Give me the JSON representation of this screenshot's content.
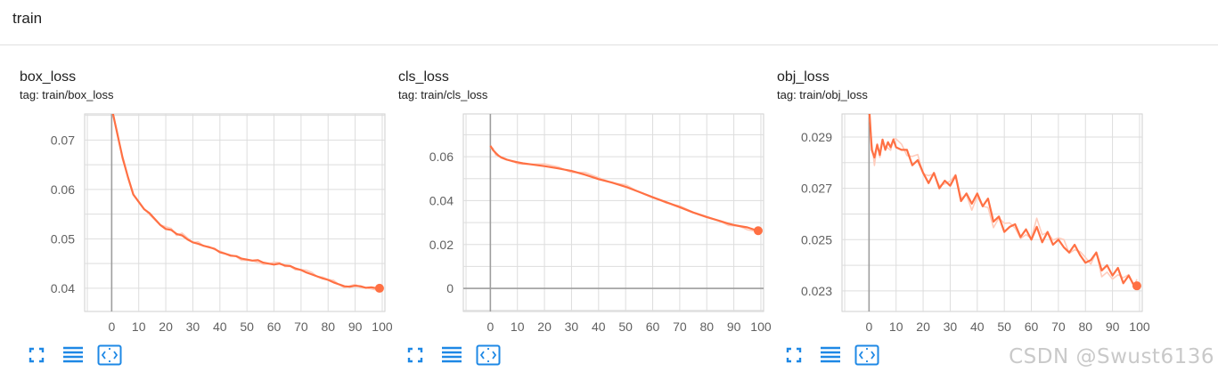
{
  "section": {
    "title": "train"
  },
  "cards": [
    {
      "title": "box_loss",
      "tag": "tag: train/box_loss",
      "toolbar": [
        "fullscreen-icon",
        "menu-lines-icon",
        "fit-domain-icon"
      ]
    },
    {
      "title": "cls_loss",
      "tag": "tag: train/cls_loss",
      "toolbar": [
        "fullscreen-icon",
        "menu-lines-icon",
        "fit-domain-icon"
      ]
    },
    {
      "title": "obj_loss",
      "tag": "tag: train/obj_loss",
      "toolbar": [
        "fullscreen-icon",
        "menu-lines-icon",
        "fit-domain-icon"
      ]
    }
  ],
  "watermark": "CSDN @Swust6136",
  "colors": {
    "line": "#ff7043",
    "raw": "#ffccbc",
    "grid": "#dddddd",
    "axis": "#9e9e9e",
    "icon": "#1e88e5"
  },
  "chart_data": [
    {
      "type": "line",
      "title": "box_loss",
      "xlim": [
        -10,
        101
      ],
      "ylim": [
        0.0353,
        0.0753
      ],
      "xticks": [
        0,
        10,
        20,
        30,
        40,
        50,
        60,
        70,
        80,
        90,
        100
      ],
      "yticks": [
        0.04,
        0.05,
        0.06,
        0.07
      ],
      "ytick_labels": [
        "0.04",
        "0.05",
        "0.06",
        "0.07"
      ],
      "grid": true,
      "series": [
        {
          "name": "smoothed",
          "x": [
            0,
            2,
            4,
            6,
            8,
            10,
            12,
            14,
            16,
            18,
            20,
            22,
            24,
            26,
            28,
            30,
            32,
            34,
            36,
            38,
            40,
            42,
            44,
            46,
            48,
            50,
            52,
            54,
            56,
            58,
            60,
            62,
            64,
            66,
            68,
            70,
            72,
            74,
            76,
            78,
            80,
            82,
            84,
            86,
            88,
            90,
            92,
            94,
            96,
            98,
            99
          ],
          "y": [
            0.0765,
            0.0715,
            0.0665,
            0.0625,
            0.059,
            0.0575,
            0.056,
            0.0552,
            0.054,
            0.0528,
            0.052,
            0.0518,
            0.051,
            0.0507,
            0.0499,
            0.0493,
            0.049,
            0.0486,
            0.0483,
            0.048,
            0.0473,
            0.047,
            0.0466,
            0.0465,
            0.046,
            0.0458,
            0.0456,
            0.0457,
            0.0452,
            0.045,
            0.0448,
            0.045,
            0.0446,
            0.0445,
            0.044,
            0.0437,
            0.0432,
            0.0428,
            0.0424,
            0.042,
            0.0417,
            0.0412,
            0.0408,
            0.0404,
            0.0403,
            0.0405,
            0.0404,
            0.0401,
            0.0402,
            0.04,
            0.04
          ]
        }
      ]
    },
    {
      "type": "line",
      "title": "cls_loss",
      "xlim": [
        -10,
        101
      ],
      "ylim": [
        -0.0105,
        0.0795
      ],
      "xticks": [
        0,
        10,
        20,
        30,
        40,
        50,
        60,
        70,
        80,
        90,
        100
      ],
      "yticks": [
        0,
        0.02,
        0.04,
        0.06
      ],
      "ytick_labels": [
        "0",
        "0.02",
        "0.04",
        "0.06"
      ],
      "grid": true,
      "series": [
        {
          "name": "smoothed",
          "x": [
            0,
            1,
            2,
            3,
            4,
            6,
            8,
            10,
            12,
            15,
            20,
            25,
            30,
            35,
            40,
            45,
            50,
            55,
            60,
            65,
            70,
            75,
            80,
            85,
            88,
            90,
            92,
            95,
            97,
            99
          ],
          "y": [
            0.065,
            0.063,
            0.0617,
            0.0605,
            0.0597,
            0.0587,
            0.058,
            0.0575,
            0.057,
            0.0565,
            0.0557,
            0.0547,
            0.0535,
            0.0518,
            0.0498,
            0.0482,
            0.0463,
            0.044,
            0.0415,
            0.0393,
            0.037,
            0.0346,
            0.0325,
            0.0307,
            0.0295,
            0.0289,
            0.0284,
            0.0278,
            0.027,
            0.0263
          ]
        }
      ]
    },
    {
      "type": "line",
      "title": "obj_loss",
      "xlim": [
        -10,
        101
      ],
      "ylim": [
        0.0222,
        0.0299
      ],
      "xticks": [
        0,
        10,
        20,
        30,
        40,
        50,
        60,
        70,
        80,
        90,
        100
      ],
      "yticks": [
        0.023,
        0.025,
        0.027,
        0.029
      ],
      "ytick_labels": [
        "0.023",
        "0.025",
        "0.027",
        "0.029"
      ],
      "grid": true,
      "series": [
        {
          "name": "smoothed",
          "x": [
            0,
            1,
            2,
            3,
            4,
            5,
            6,
            7,
            8,
            9,
            10,
            12,
            14,
            16,
            18,
            20,
            22,
            24,
            26,
            28,
            30,
            32,
            34,
            36,
            38,
            40,
            42,
            44,
            46,
            48,
            50,
            52,
            54,
            56,
            58,
            60,
            62,
            64,
            66,
            68,
            70,
            72,
            74,
            76,
            78,
            80,
            82,
            84,
            86,
            88,
            90,
            92,
            94,
            96,
            98,
            99
          ],
          "y": [
            0.0302,
            0.0285,
            0.0282,
            0.0287,
            0.0283,
            0.0289,
            0.0285,
            0.0288,
            0.0286,
            0.0289,
            0.0286,
            0.0285,
            0.0285,
            0.0279,
            0.0281,
            0.0276,
            0.0272,
            0.0276,
            0.027,
            0.0273,
            0.0271,
            0.0275,
            0.0265,
            0.0268,
            0.0264,
            0.0268,
            0.0263,
            0.0266,
            0.0257,
            0.0259,
            0.0253,
            0.0255,
            0.0256,
            0.0251,
            0.0254,
            0.025,
            0.0255,
            0.0249,
            0.0253,
            0.0248,
            0.025,
            0.0247,
            0.0245,
            0.0248,
            0.0244,
            0.0241,
            0.0242,
            0.0245,
            0.0238,
            0.024,
            0.0236,
            0.0239,
            0.0233,
            0.0236,
            0.0232,
            0.0232
          ]
        }
      ]
    }
  ]
}
